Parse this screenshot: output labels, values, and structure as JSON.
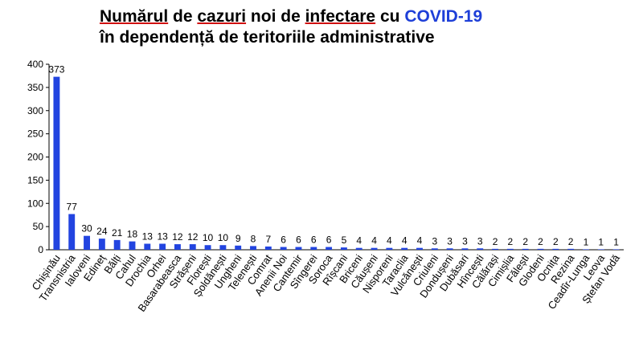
{
  "title": {
    "line1_part1": "Numărul",
    "line1_part2": " de ",
    "line1_part3": "cazuri",
    "line1_part4": " noi de ",
    "line1_part5": "infectare",
    "line1_part6": " cu ",
    "line1_highlight": "COVID-19",
    "line2": "în dependență de teritoriile administrative"
  },
  "chart_data": {
    "type": "bar",
    "categories": [
      "Chișinău",
      "Transnistria",
      "Ialoveni",
      "Edineț",
      "Bălți",
      "Cahul",
      "Drochia",
      "Orhei",
      "Basarabeasca",
      "Strășeni",
      "Florești",
      "Șoldănești",
      "Ungheni",
      "Telenești",
      "Comrat",
      "Anenii Noi",
      "Cantemir",
      "Sîngerei",
      "Soroca",
      "Rîșcani",
      "Briceni",
      "Căușeni",
      "Nisporeni",
      "Taraclia",
      "Vulcănești",
      "Criuleni",
      "Dondușeni",
      "Dubăsari",
      "Hîncești",
      "Călărași",
      "Cimișlia",
      "Fălești",
      "Glodeni",
      "Ocnița",
      "Rezina",
      "Ceadîr-Lunga",
      "Leova",
      "Ștefan Vodă"
    ],
    "values": [
      373,
      77,
      30,
      24,
      21,
      18,
      13,
      13,
      12,
      12,
      10,
      10,
      9,
      8,
      7,
      6,
      6,
      6,
      6,
      5,
      4,
      4,
      4,
      4,
      4,
      3,
      3,
      3,
      3,
      2,
      2,
      2,
      2,
      2,
      2,
      1,
      1,
      1
    ],
    "title": "Numărul de cazuri noi de infectare cu COVID-19 în dependență de teritoriile administrative",
    "xlabel": "",
    "ylabel": "",
    "ylim": [
      0,
      400
    ],
    "yticks": [
      0,
      50,
      100,
      150,
      200,
      250,
      300,
      350,
      400
    ],
    "grid": false,
    "bar_color": "#2244e0"
  }
}
